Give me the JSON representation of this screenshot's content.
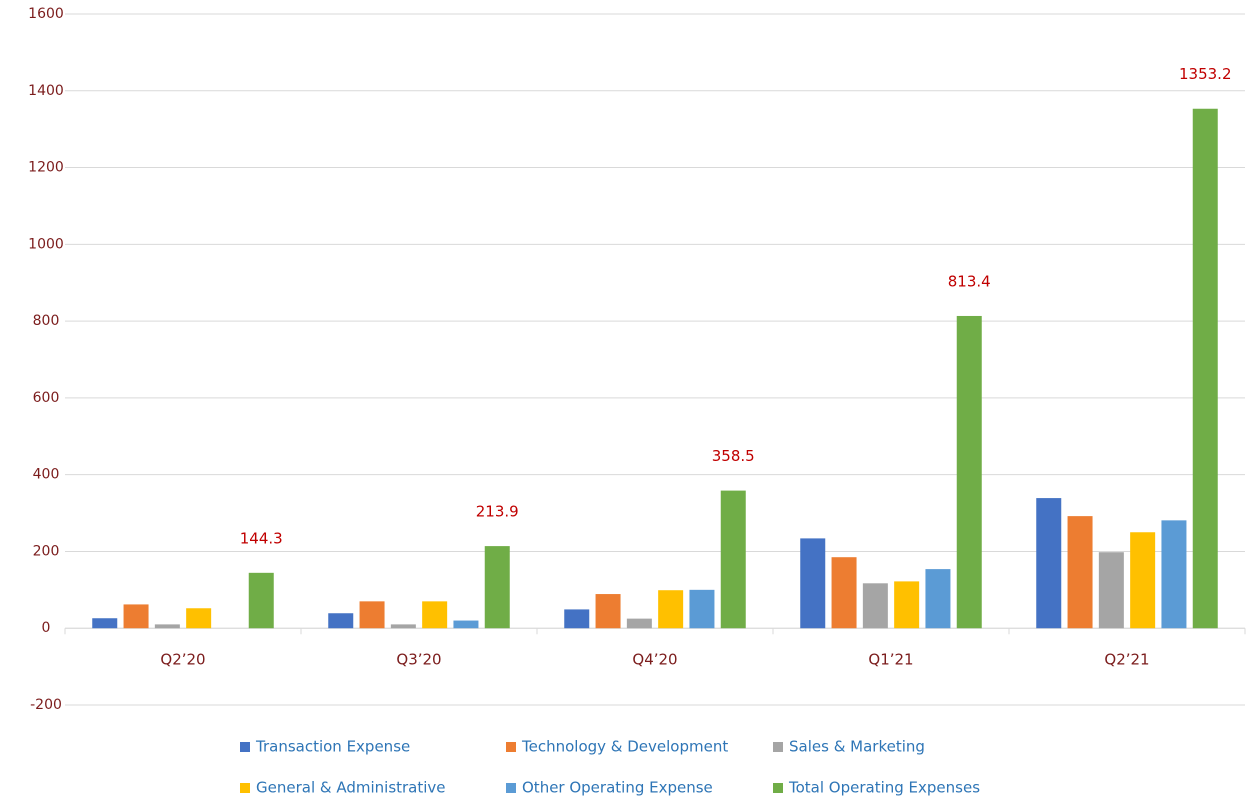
{
  "chart_data": {
    "type": "bar",
    "categories": [
      "Q2’20",
      "Q3’20",
      "Q4’20",
      "Q1’21",
      "Q2’21"
    ],
    "series": [
      {
        "name": "Transaction Expense",
        "color": "#4472c4",
        "values": [
          26,
          39,
          49,
          234,
          339
        ]
      },
      {
        "name": "Technology & Development",
        "color": "#ed7d31",
        "values": [
          62,
          70,
          89,
          185,
          292
        ]
      },
      {
        "name": "Sales & Marketing",
        "color": "#a5a5a5",
        "values": [
          10,
          10,
          25,
          117,
          198
        ]
      },
      {
        "name": "General & Administrative",
        "color": "#ffc000",
        "values": [
          52,
          70,
          99,
          122,
          250
        ]
      },
      {
        "name": "Other Operating Expense",
        "color": "#5b9bd5",
        "values": [
          null,
          20,
          100,
          154,
          281
        ]
      },
      {
        "name": "Total Operating Expenses",
        "color": "#70ad47",
        "values": [
          144.3,
          213.9,
          358.5,
          813.4,
          1353.2
        ],
        "data_labels": true
      }
    ],
    "ylim": [
      -200,
      1600
    ],
    "yticks": [
      -200,
      0,
      200,
      400,
      600,
      800,
      1000,
      1200,
      1400,
      1600
    ],
    "grid": true,
    "legend": "bottom"
  }
}
